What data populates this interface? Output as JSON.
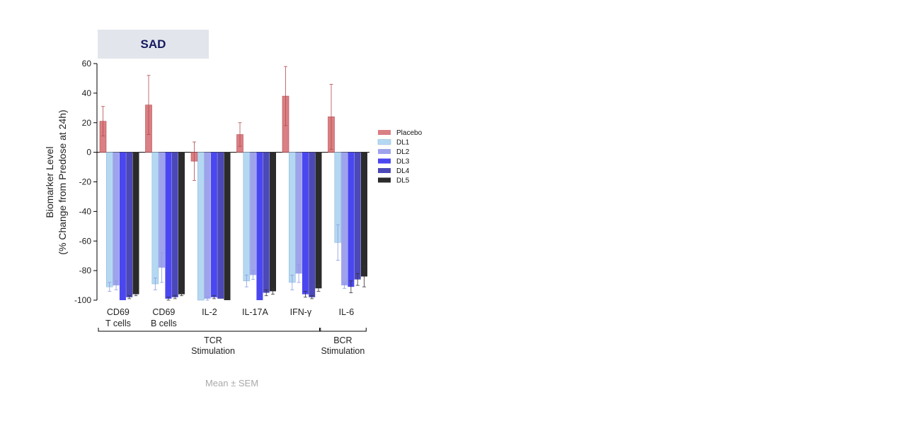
{
  "panel_title": "SAD",
  "footnote": "Mean ± SEM",
  "chart_data": {
    "type": "bar",
    "ylabel_line1": "Biomarker Level",
    "ylabel_line2": "(% Change from Predose at 24h)",
    "ylim": [
      -100,
      60
    ],
    "yticks": [
      60,
      40,
      20,
      0,
      -20,
      -40,
      -60,
      -80,
      -100
    ],
    "categories": [
      {
        "line1": "CD69",
        "line2": "T cells"
      },
      {
        "line1": "CD69",
        "line2": "B cells"
      },
      {
        "line1": "IL-2",
        "line2": ""
      },
      {
        "line1": "IL-17A",
        "line2": ""
      },
      {
        "line1": "IFN-γ",
        "line2": ""
      },
      {
        "line1": "IL-6",
        "line2": ""
      }
    ],
    "groups": [
      {
        "line1": "TCR",
        "line2": "Stimulation",
        "from": 0,
        "to": 4
      },
      {
        "line1": "BCR",
        "line2": "Stimulation",
        "from": 5,
        "to": 5
      }
    ],
    "legend_position": "right",
    "series": [
      {
        "name": "Placebo",
        "color": "#d4696d",
        "fill_opacity": 0.85,
        "values": [
          21,
          32,
          -6,
          12,
          38,
          24
        ],
        "errors": [
          10,
          20,
          13,
          8,
          20,
          22
        ]
      },
      {
        "name": "DL1",
        "color": "#b5d8f2",
        "fill_opacity": 1,
        "values": [
          -91,
          -89,
          -100,
          -87,
          -88,
          -61
        ],
        "errors": [
          3,
          4,
          0,
          4,
          5,
          12
        ]
      },
      {
        "name": "DL2",
        "color": "#9ea3ec",
        "fill_opacity": 1,
        "values": [
          -90,
          -78,
          -99,
          -83,
          -82,
          -90
        ],
        "errors": [
          3,
          10,
          1,
          3,
          6,
          2
        ]
      },
      {
        "name": "DL3",
        "color": "#4a47f0",
        "fill_opacity": 1,
        "values": [
          -100,
          -99,
          -98,
          -100,
          -96,
          -91
        ],
        "errors": [
          0,
          1,
          1,
          0,
          2,
          4
        ]
      },
      {
        "name": "DL4",
        "color": "#4b48b8",
        "fill_opacity": 1,
        "values": [
          -98,
          -98,
          -99,
          -95,
          -98,
          -86
        ],
        "errors": [
          1,
          1,
          0,
          2,
          1,
          4
        ]
      },
      {
        "name": "DL5",
        "color": "#2b2b2b",
        "fill_opacity": 1,
        "values": [
          -96,
          -96,
          -100,
          -94,
          -92,
          -84
        ],
        "errors": [
          1,
          1,
          0,
          2,
          2,
          7
        ]
      }
    ]
  }
}
